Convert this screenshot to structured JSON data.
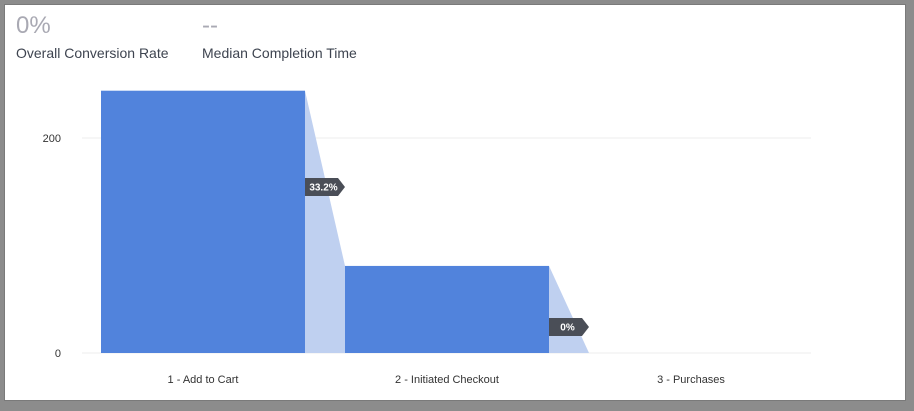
{
  "stats": {
    "conversion_value": "0%",
    "conversion_label": "Overall Conversion Rate",
    "median_value": "--",
    "median_label": "Median Completion Time"
  },
  "colors": {
    "bar": "#5183dc",
    "dropoff": "#bfd0f0",
    "badge": "#4a4e57",
    "grid": "#eeeeee"
  },
  "chart_data": {
    "type": "bar",
    "title": "",
    "xlabel": "",
    "ylabel": "",
    "ylim": [
      0,
      250
    ],
    "yticks": [
      0,
      200
    ],
    "categories": [
      "1 - Add to Cart",
      "2 - Initiated Checkout",
      "3 - Purchases"
    ],
    "values": [
      244,
      81,
      0
    ],
    "conversion_rates": [
      "33.2%",
      "0%"
    ],
    "grid": true,
    "legend": "none"
  }
}
